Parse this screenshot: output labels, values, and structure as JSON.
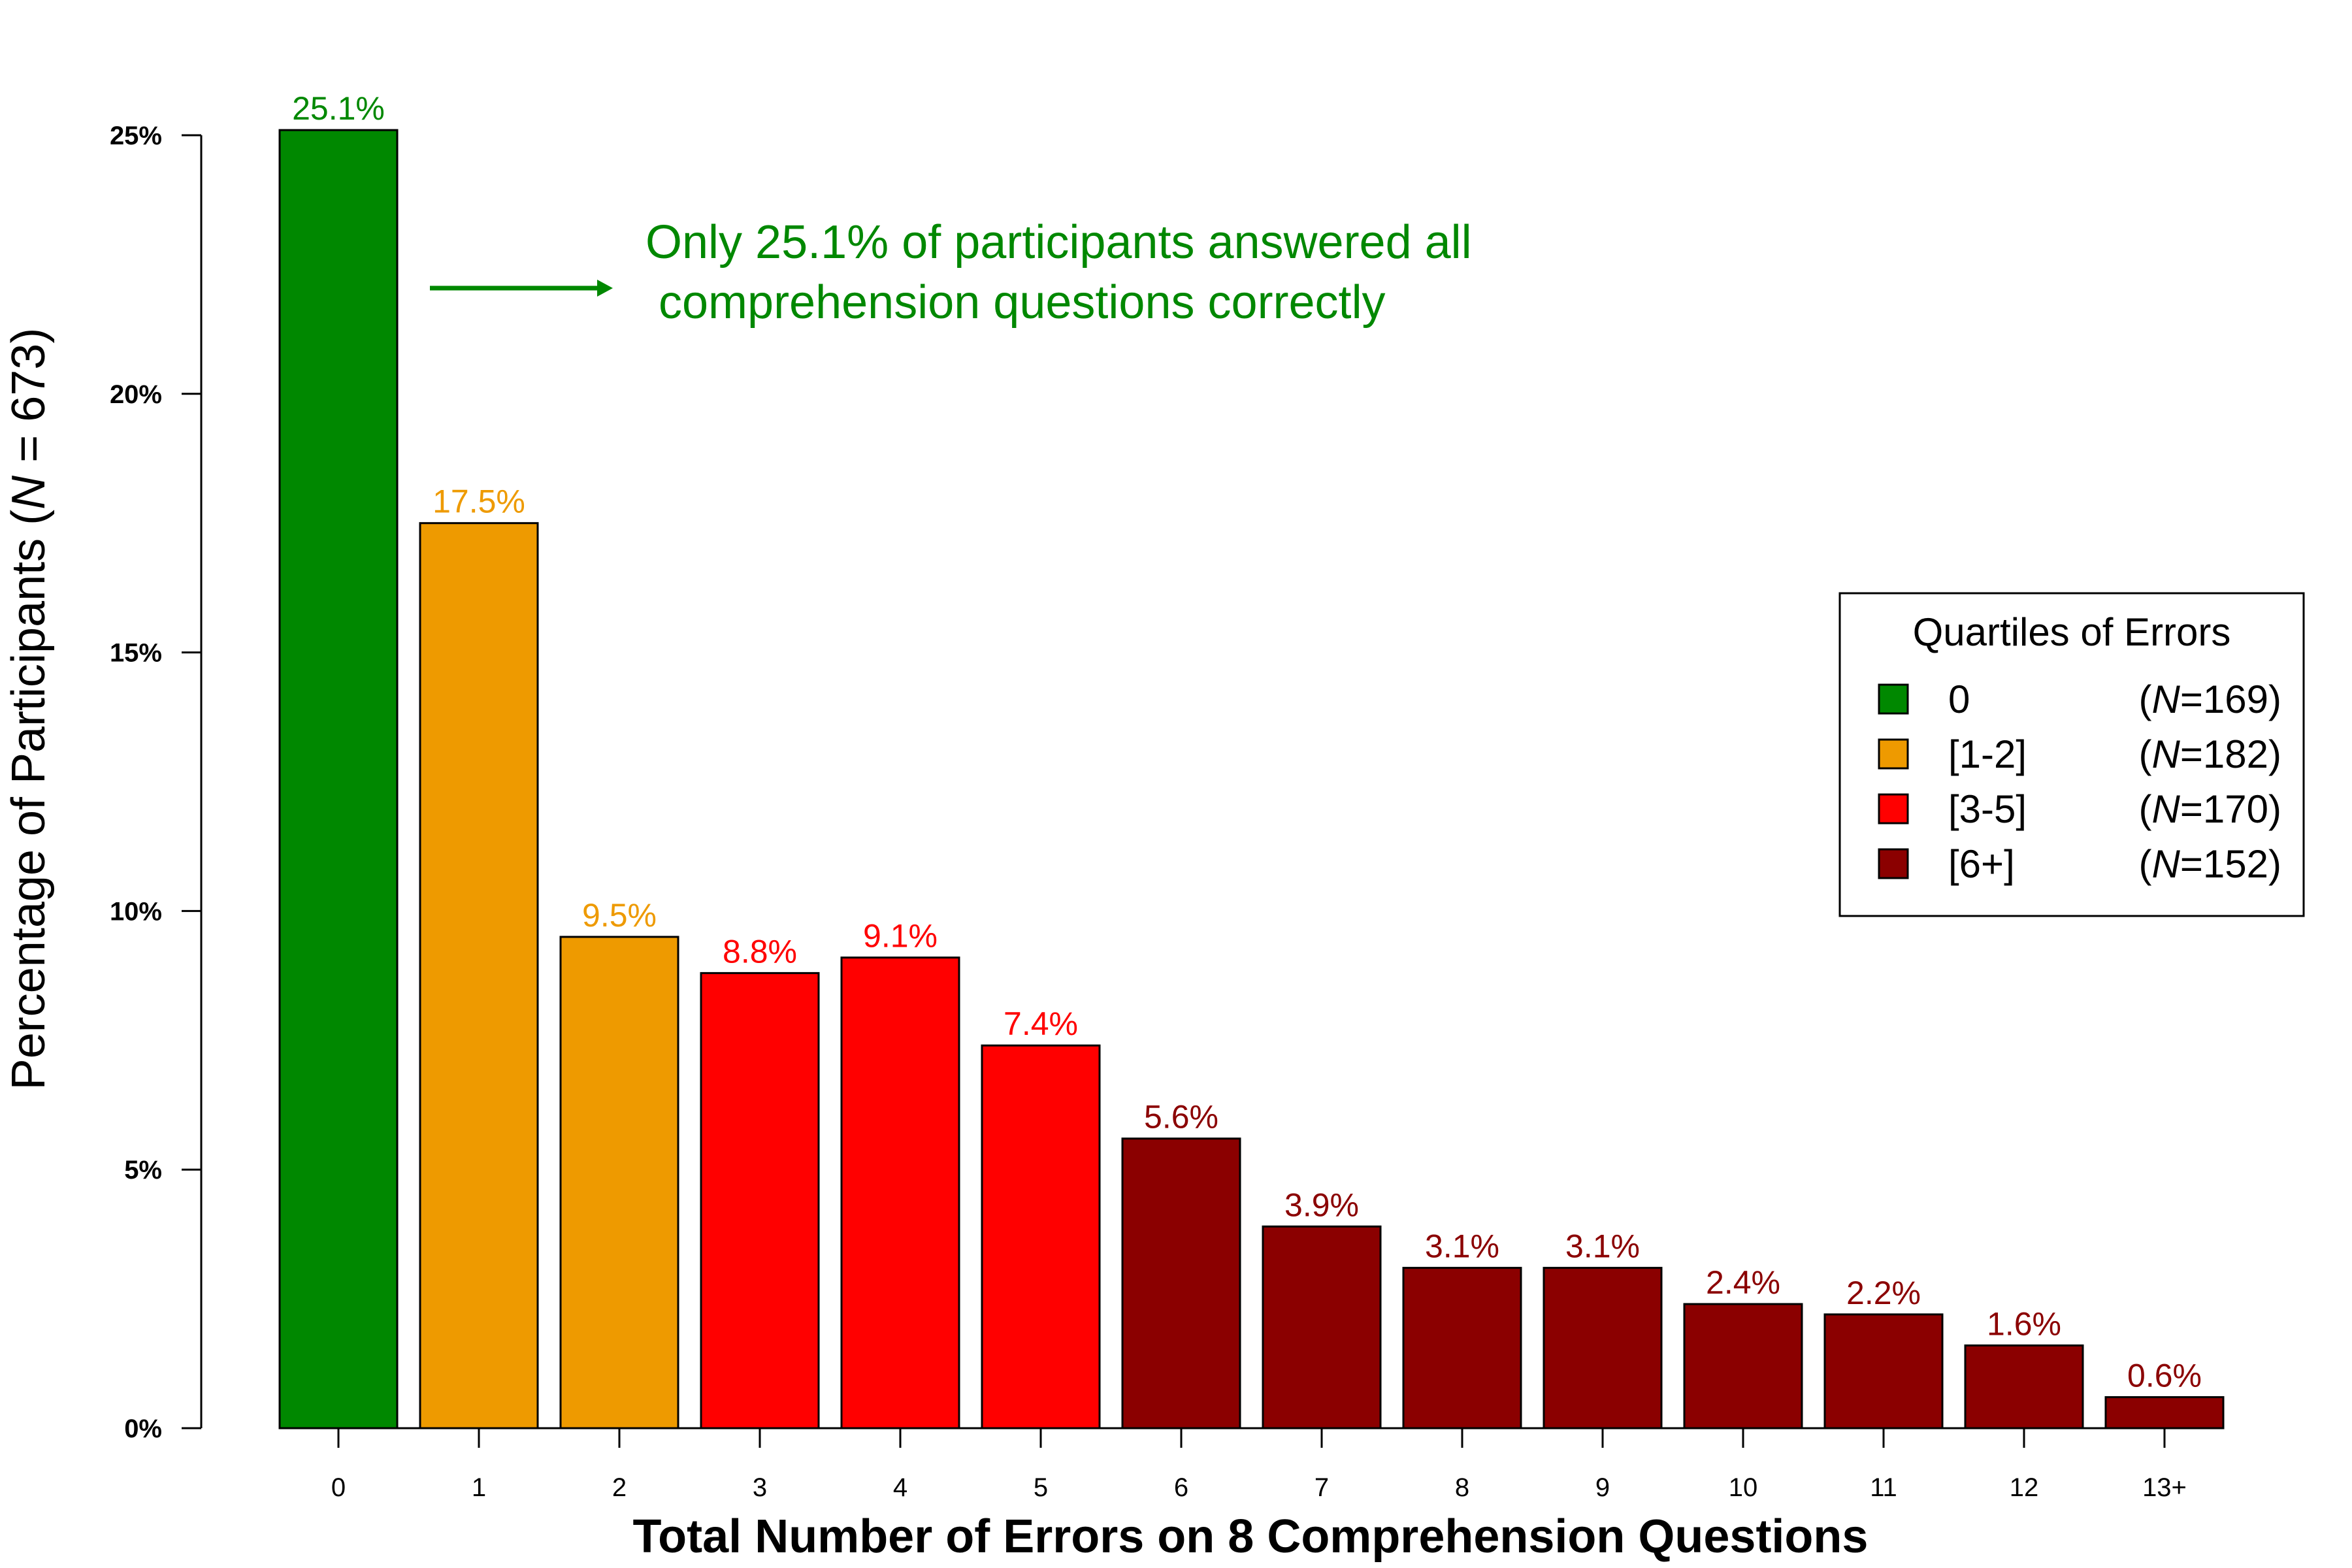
{
  "chart_data": {
    "type": "bar",
    "categories": [
      "0",
      "1",
      "2",
      "3",
      "4",
      "5",
      "6",
      "7",
      "8",
      "9",
      "10",
      "11",
      "12",
      "13+"
    ],
    "values": [
      25.1,
      17.5,
      9.5,
      8.8,
      9.1,
      7.4,
      5.6,
      3.9,
      3.1,
      3.1,
      2.4,
      2.2,
      1.6,
      0.6
    ],
    "data_labels": [
      "25.1%",
      "17.5%",
      "9.5%",
      "8.8%",
      "9.1%",
      "7.4%",
      "5.6%",
      "3.9%",
      "3.1%",
      "3.1%",
      "2.4%",
      "2.2%",
      "1.6%",
      "0.6%"
    ],
    "groups": [
      0,
      1,
      1,
      2,
      2,
      2,
      3,
      3,
      3,
      3,
      3,
      3,
      3,
      3
    ],
    "xlabel": "Total Number of Errors on 8 Comprehension Questions",
    "ylabel_prefix": "Percentage of Participants (",
    "ylabel_italic": "N",
    "ylabel_suffix": " = 673)",
    "ylim": [
      0,
      25
    ],
    "yticks": [
      0,
      5,
      10,
      15,
      20,
      25
    ],
    "ytick_labels": [
      "0%",
      "5%",
      "10%",
      "15%",
      "20%",
      "25%"
    ],
    "grid": false,
    "annotation": {
      "line1": "Only 25.1% of participants answered all",
      "line2": " comprehension questions correctly",
      "color": "#008800"
    },
    "legend": {
      "title": "Quartiles of Errors",
      "placement": "right",
      "items": [
        {
          "label": "0",
          "n_prefix": "(",
          "n_italic": "N",
          "n_suffix": "=169)",
          "color": "#008800"
        },
        {
          "label": "[1-2]",
          "n_prefix": "(",
          "n_italic": "N",
          "n_suffix": "=182)",
          "color": "#EE9A00"
        },
        {
          "label": "[3-5]",
          "n_prefix": "(",
          "n_italic": "N",
          "n_suffix": "=170)",
          "color": "#FF0000"
        },
        {
          "label": "[6+]",
          "n_prefix": "(",
          "n_italic": "N",
          "n_suffix": "=152)",
          "color": "#8B0000"
        }
      ]
    }
  }
}
